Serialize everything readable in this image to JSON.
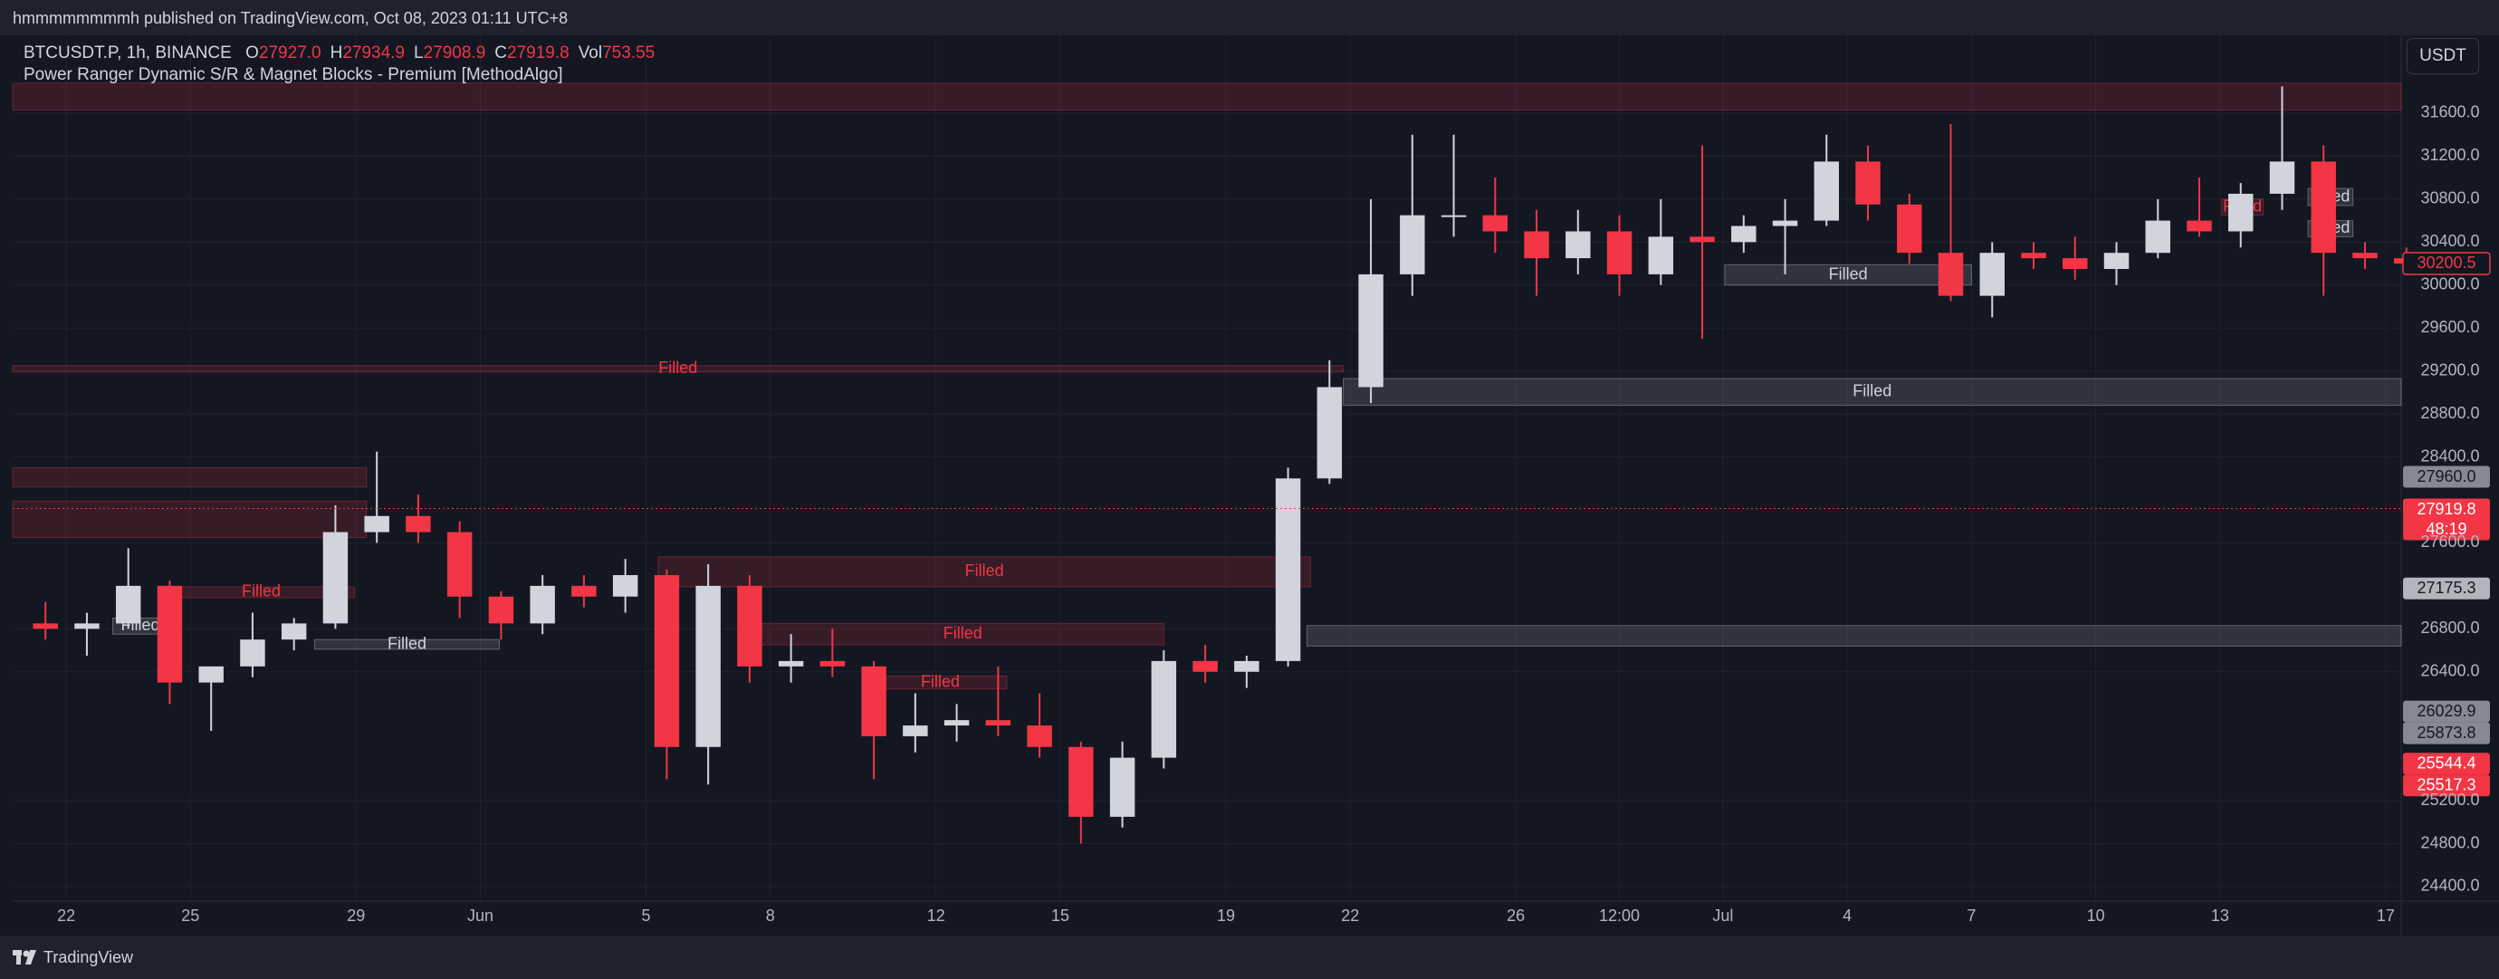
{
  "header": {
    "published": "hmmmmmmmmh published on TradingView.com, Oct 08, 2023 01:11 UTC+8"
  },
  "footer": {
    "brand": "TradingView"
  },
  "currency_button": "USDT",
  "chart_data": {
    "type": "candlestick",
    "symbol": "BTCUSDT.P, 1h, BINANCE",
    "indicator": "Power Ranger Dynamic S/R & Magnet Blocks - Premium [MethodAlgo]",
    "legend_labels": [
      "O",
      "H",
      "L",
      "C",
      "Vol"
    ],
    "legend_values": [
      "27927.0",
      "27934.9",
      "27908.9",
      "27919.8",
      "753.55"
    ],
    "up_color": "#d1d4dc",
    "down_color": "#f23645",
    "x": [
      "05-21 12:00",
      "05-22 12:00",
      "05-23 12:00",
      "05-24 12:00",
      "05-25 12:00",
      "05-26 12:00",
      "05-27 12:00",
      "05-28 12:00",
      "05-29 12:00",
      "05-30 12:00",
      "05-31 12:00",
      "06-01 12:00",
      "06-02 12:00",
      "06-03 12:00",
      "06-04 12:00",
      "06-05 12:00",
      "06-06 12:00",
      "06-07 12:00",
      "06-08 12:00",
      "06-09 12:00",
      "06-10 12:00",
      "06-11 12:00",
      "06-12 12:00",
      "06-13 12:00",
      "06-14 12:00",
      "06-15 12:00",
      "06-16 12:00",
      "06-17 12:00",
      "06-18 12:00",
      "06-19 12:00",
      "06-20 12:00",
      "06-21 12:00",
      "06-22 12:00",
      "06-23 12:00",
      "06-24 12:00",
      "06-25 12:00",
      "06-26 12:00",
      "06-27 12:00",
      "06-28 12:00",
      "06-29 12:00",
      "06-30 12:00",
      "07-01 12:00",
      "07-02 12:00",
      "07-03 12:00",
      "07-04 12:00",
      "07-05 12:00",
      "07-06 12:00",
      "07-07 12:00",
      "07-08 12:00",
      "07-09 12:00",
      "07-10 12:00",
      "07-11 12:00",
      "07-12 12:00",
      "07-13 12:00",
      "07-14 12:00",
      "07-15 12:00",
      "07-16 12:00",
      "07-17 12:00"
    ],
    "open": [
      26850,
      26800,
      26850,
      27200,
      26300,
      26450,
      26700,
      26850,
      27700,
      27850,
      27700,
      27100,
      26850,
      27200,
      27100,
      27300,
      25700,
      27200,
      26450,
      26500,
      26450,
      25800,
      25900,
      25950,
      25900,
      25700,
      25050,
      25600,
      26500,
      26400,
      26500,
      28200,
      29050,
      30100,
      30650,
      30650,
      30500,
      30250,
      30500,
      30100,
      30450,
      30400,
      30550,
      30600,
      31150,
      30750,
      30300,
      29900,
      30300,
      30250,
      30150,
      30300,
      30600,
      30500,
      30850,
      31150,
      30300,
      30250
    ],
    "high": [
      27050,
      26950,
      27550,
      27250,
      26450,
      26950,
      26900,
      27950,
      28450,
      28050,
      27800,
      27150,
      27300,
      27300,
      27450,
      27350,
      27400,
      27300,
      26750,
      26800,
      26500,
      26200,
      26100,
      26450,
      26200,
      25750,
      25750,
      26600,
      26650,
      26550,
      28300,
      29300,
      30800,
      31400,
      31400,
      31000,
      30700,
      30700,
      30650,
      30800,
      31300,
      30650,
      30800,
      31400,
      31300,
      30850,
      31500,
      30400,
      30400,
      30450,
      30400,
      30800,
      31000,
      30950,
      31850,
      31300,
      30400,
      30350
    ],
    "low": [
      26700,
      26550,
      26800,
      26100,
      25850,
      26350,
      26600,
      26800,
      27600,
      27600,
      26900,
      26700,
      26750,
      27000,
      26950,
      25400,
      25350,
      26300,
      26300,
      26350,
      25400,
      25650,
      25750,
      25800,
      25600,
      24800,
      24950,
      25500,
      26300,
      26250,
      26450,
      28150,
      28900,
      29900,
      30450,
      30300,
      29900,
      30100,
      29900,
      30000,
      29500,
      30300,
      30100,
      30550,
      30600,
      30200,
      29850,
      29700,
      30150,
      30050,
      30000,
      30250,
      30450,
      30350,
      30700,
      29900,
      30150,
      30100
    ],
    "close": [
      26800,
      26850,
      27200,
      26300,
      26450,
      26700,
      26850,
      27700,
      27850,
      27700,
      27100,
      26850,
      27200,
      27100,
      27300,
      25700,
      27200,
      26450,
      26500,
      26450,
      25800,
      25900,
      25950,
      25900,
      25700,
      25050,
      25600,
      26500,
      26400,
      26500,
      28200,
      29050,
      30100,
      30650,
      30650,
      30500,
      30250,
      30500,
      30100,
      30450,
      30400,
      30550,
      30600,
      31150,
      30750,
      30300,
      29900,
      30300,
      30250,
      30150,
      30300,
      30600,
      30500,
      30850,
      31150,
      30300,
      30250,
      30200.5
    ],
    "xlim": [
      "05-20 17:00",
      "07-17 09:00"
    ],
    "xticks": [
      {
        "value": "05-22 00:00",
        "label": "22"
      },
      {
        "value": "05-25 00:00",
        "label": "25"
      },
      {
        "value": "05-29 00:00",
        "label": "29"
      },
      {
        "value": "06-01 00:00",
        "label": "Jun"
      },
      {
        "value": "06-05 00:00",
        "label": "5"
      },
      {
        "value": "06-08 00:00",
        "label": "8"
      },
      {
        "value": "06-12 00:00",
        "label": "12"
      },
      {
        "value": "06-15 00:00",
        "label": "15"
      },
      {
        "value": "06-19 00:00",
        "label": "19"
      },
      {
        "value": "06-22 00:00",
        "label": "22"
      },
      {
        "value": "06-26 00:00",
        "label": "26"
      },
      {
        "value": "06-28 12:00",
        "label": "12:00"
      },
      {
        "value": "07-01 00:00",
        "label": "Jul"
      },
      {
        "value": "07-04 00:00",
        "label": "4"
      },
      {
        "value": "07-07 00:00",
        "label": "7"
      },
      {
        "value": "07-10 00:00",
        "label": "10"
      },
      {
        "value": "07-13 00:00",
        "label": "13"
      },
      {
        "value": "07-17 00:00",
        "label": "17"
      }
    ],
    "ylim": [
      24265,
      32325
    ],
    "yticks": [
      {
        "value": 31600,
        "label": "31600.0"
      },
      {
        "value": 31200,
        "label": "31200.0"
      },
      {
        "value": 30800,
        "label": "30800.0"
      },
      {
        "value": 30400,
        "label": "30400.0"
      },
      {
        "value": 30000,
        "label": "30000.0"
      },
      {
        "value": 29600,
        "label": "29600.0"
      },
      {
        "value": 29200,
        "label": "29200.0"
      },
      {
        "value": 28800,
        "label": "28800.0"
      },
      {
        "value": 28400,
        "label": "28400.0"
      },
      {
        "value": 27600,
        "label": "27600.0"
      },
      {
        "value": 26800,
        "label": "26800.0"
      },
      {
        "value": 26400,
        "label": "26400.0"
      },
      {
        "value": 25200,
        "label": "25200.0"
      },
      {
        "value": 24800,
        "label": "24800.0"
      },
      {
        "value": 24400,
        "label": "24400.0"
      }
    ],
    "grid": true,
    "zones": [
      {
        "kind": "red",
        "start": "05-20 17:00",
        "end": "07-17 09:00",
        "top": 31880,
        "bottom": 31630
      },
      {
        "kind": "red",
        "start": "05-20 17:00",
        "end": "06-21 20:00",
        "top": 29250,
        "bottom": 29190,
        "label": "Filled"
      },
      {
        "kind": "red",
        "start": "05-20 17:00",
        "end": "05-29 06:00",
        "top": 28300,
        "bottom": 28120
      },
      {
        "kind": "red",
        "start": "05-20 17:00",
        "end": "05-29 06:00",
        "top": 27990,
        "bottom": 27650
      },
      {
        "kind": "gray",
        "start": "06-21 20:00",
        "end": "07-17 09:00",
        "top": 29130,
        "bottom": 28880,
        "label": "Filled"
      },
      {
        "kind": "gray",
        "start": "07-01 01:00",
        "end": "07-07 00:00",
        "top": 30190,
        "bottom": 30000,
        "label": "Filled"
      },
      {
        "kind": "red",
        "start": "06-05 07:00",
        "end": "06-21 01:00",
        "top": 27470,
        "bottom": 27190,
        "label": "Filled"
      },
      {
        "kind": "red",
        "start": "06-07 19:00",
        "end": "06-17 12:00",
        "top": 26850,
        "bottom": 26650,
        "label": "Filled"
      },
      {
        "kind": "gray",
        "start": "06-20 23:00",
        "end": "07-17 09:00",
        "top": 26830,
        "bottom": 26640
      },
      {
        "kind": "red",
        "start": "06-10 12:00",
        "end": "06-13 17:00",
        "top": 26360,
        "bottom": 26240,
        "label": "Filled"
      },
      {
        "kind": "red",
        "start": "05-24 11:00",
        "end": "05-28 23:00",
        "top": 27190,
        "bottom": 27090,
        "label": "Filled"
      },
      {
        "kind": "gray",
        "start": "05-28 00:00",
        "end": "06-01 11:00",
        "top": 26700,
        "bottom": 26610,
        "label": "Filled"
      },
      {
        "kind": "gray",
        "start": "05-23 03:00",
        "end": "05-24 11:00",
        "top": 26900,
        "bottom": 26750,
        "label": "Filled"
      },
      {
        "kind": "gray",
        "start": "07-15 03:00",
        "end": "07-16 05:00",
        "top": 30900,
        "bottom": 30740,
        "label": "Filled"
      },
      {
        "kind": "gray",
        "start": "07-15 03:00",
        "end": "07-16 05:00",
        "top": 30600,
        "bottom": 30450,
        "label": "Filled"
      },
      {
        "kind": "red",
        "start": "07-13 01:00",
        "end": "07-14 01:00",
        "top": 30800,
        "bottom": 30650,
        "label": "Filled"
      }
    ],
    "price_tags": [
      {
        "value": 30200.5,
        "label": "30200.5",
        "kind": "outline"
      },
      {
        "value": 27960,
        "label": "27960.0",
        "kind": "gray"
      },
      {
        "value": 27919.8,
        "label": "27919.8",
        "kind": "current"
      },
      {
        "value": 27175.3,
        "label": "27175.3",
        "kind": "light"
      },
      {
        "value": 26029.9,
        "label": "26029.9",
        "kind": "gray"
      },
      {
        "value": 25873.8,
        "label": "25873.8",
        "kind": "gray"
      },
      {
        "value": 25544.4,
        "label": "25544.4",
        "kind": "red"
      },
      {
        "value": 25517.3,
        "label": "25517.3",
        "kind": "red"
      }
    ],
    "countdown": "48:19"
  }
}
